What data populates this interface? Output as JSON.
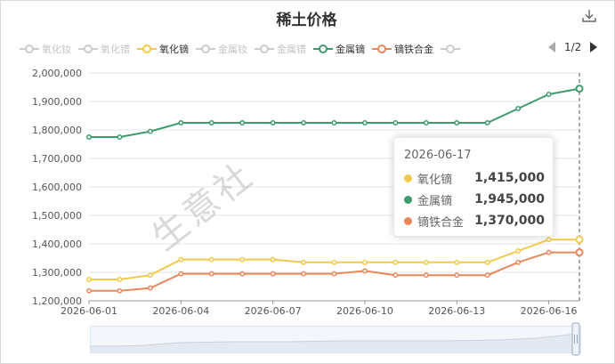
{
  "title": "稀土价格",
  "pager": "1/2",
  "legend": [
    {
      "name": "氧化钕",
      "color": "#cccccc",
      "active": false
    },
    {
      "name": "氧化镨",
      "color": "#cccccc",
      "active": false
    },
    {
      "name": "氧化镝",
      "color": "#f2c94c",
      "active": true
    },
    {
      "name": "金属钕",
      "color": "#cccccc",
      "active": false
    },
    {
      "name": "金属镨",
      "color": "#cccccc",
      "active": false
    },
    {
      "name": "金属镝",
      "color": "#3e9b6e",
      "active": true
    },
    {
      "name": "镝铁合金",
      "color": "#e8875a",
      "active": true
    },
    {
      "name": "",
      "color": "#cccccc",
      "active": false
    }
  ],
  "watermark": "生意社",
  "tooltip": {
    "date": "2026-06-17",
    "rows": [
      {
        "name": "氧化镝",
        "value": "1,415,000",
        "color": "#f2c94c"
      },
      {
        "name": "金属镝",
        "value": "1,945,000",
        "color": "#3e9b6e"
      },
      {
        "name": "镝铁合金",
        "value": "1,370,000",
        "color": "#e8875a"
      }
    ]
  },
  "chart_data": {
    "type": "line",
    "title": "稀土价格",
    "x": [
      "2026-06-01",
      "2026-06-02",
      "2026-06-03",
      "2026-06-04",
      "2026-06-05",
      "2026-06-06",
      "2026-06-07",
      "2026-06-08",
      "2026-06-09",
      "2026-06-10",
      "2026-06-11",
      "2026-06-12",
      "2026-06-13",
      "2026-06-14",
      "2026-06-15",
      "2026-06-16",
      "2026-06-17"
    ],
    "x_tick_labels": [
      "2026-06-01",
      "2026-06-04",
      "2026-06-07",
      "2026-06-10",
      "2026-06-13",
      "2026-06-16"
    ],
    "y_tick_labels": [
      "1,200,000",
      "1,300,000",
      "1,400,000",
      "1,500,000",
      "1,600,000",
      "1,700,000",
      "1,800,000",
      "1,900,000",
      "2,000,000"
    ],
    "ylim": [
      1200000,
      2000000
    ],
    "grid": true,
    "legend_position": "top",
    "series": [
      {
        "name": "金属镝",
        "color": "#3e9b6e",
        "values": [
          1775000,
          1775000,
          1795000,
          1825000,
          1825000,
          1825000,
          1825000,
          1825000,
          1825000,
          1825000,
          1825000,
          1825000,
          1825000,
          1825000,
          1875000,
          1925000,
          1945000
        ]
      },
      {
        "name": "氧化镝",
        "color": "#f2c94c",
        "values": [
          1275000,
          1275000,
          1290000,
          1345000,
          1345000,
          1345000,
          1345000,
          1335000,
          1335000,
          1335000,
          1335000,
          1335000,
          1335000,
          1335000,
          1375000,
          1415000,
          1415000
        ]
      },
      {
        "name": "镝铁合金",
        "color": "#e8875a",
        "values": [
          1235000,
          1235000,
          1245000,
          1295000,
          1295000,
          1295000,
          1295000,
          1295000,
          1295000,
          1305000,
          1290000,
          1290000,
          1290000,
          1290000,
          1335000,
          1370000,
          1370000
        ]
      }
    ]
  }
}
